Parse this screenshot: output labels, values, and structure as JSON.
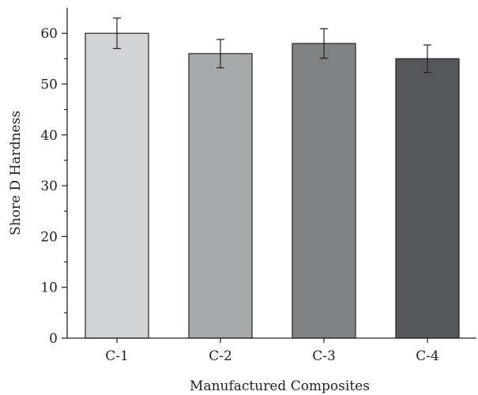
{
  "chart_data": {
    "type": "bar",
    "categories": [
      "C-1",
      "C-2",
      "C-3",
      "C-4"
    ],
    "values": [
      60,
      56,
      58,
      55
    ],
    "errors": [
      3,
      2.8,
      2.9,
      2.7
    ],
    "title": "",
    "xlabel": "Manufactured Composites",
    "ylabel": "Shore D Hardness",
    "ylim": [
      0,
      65
    ],
    "yticks": [
      0,
      10,
      20,
      30,
      40,
      50,
      60
    ],
    "grid": false,
    "bar_colors": [
      "#d3d4d6",
      "#a8a9ab",
      "#808183",
      "#56575a"
    ]
  }
}
